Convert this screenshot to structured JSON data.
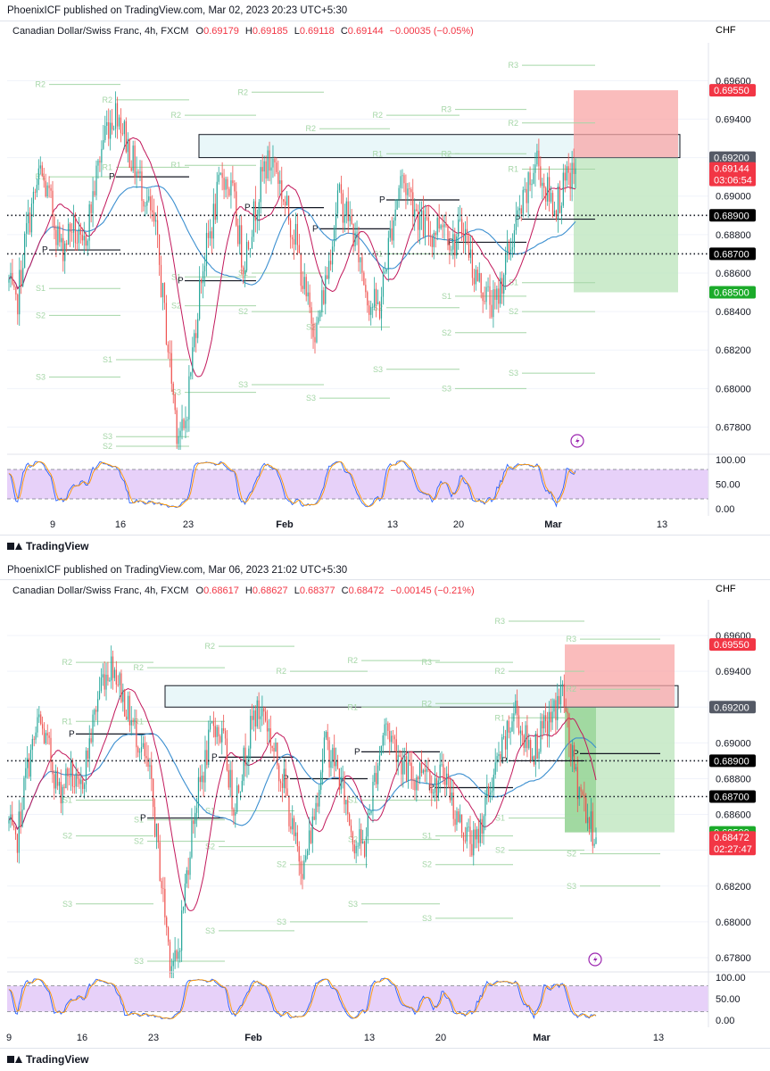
{
  "charts": [
    {
      "published": "PhoenixICF published on TradingView.com, Mar 02, 2023 20:23 UTC+5:30",
      "legend": {
        "symbol": "Canadian Dollar/Swiss Franc, 4h, FXCM",
        "o_label": "O",
        "o": "0.69179",
        "h_label": "H",
        "h": "0.69185",
        "l_label": "L",
        "l": "0.69118",
        "c_label": "C",
        "c": "0.69144",
        "change": "−0.00035 (−0.05%)"
      },
      "currency": "CHF",
      "countdown": "03:06:54",
      "last_price": "0.69144",
      "x_ticks": [
        "9",
        "16",
        "23",
        "Feb",
        "13",
        "20",
        "Mar",
        "13"
      ],
      "osc_ticks": [
        "100.00",
        "50.00",
        "0.00"
      ],
      "badges": [
        {
          "label": "0.69550",
          "bg": "#f23645",
          "fg": "#ffffff"
        },
        {
          "label": "0.69200",
          "bg": "#555a66",
          "fg": "#ffffff"
        },
        {
          "label": "0.68900",
          "bg": "#000000",
          "fg": "#ffffff"
        },
        {
          "label": "0.68700",
          "bg": "#000000",
          "fg": "#ffffff"
        },
        {
          "label": "0.68500",
          "bg": "#1bab2a",
          "fg": "#ffffff"
        }
      ]
    },
    {
      "published": "PhoenixICF published on TradingView.com, Mar 06, 2023 21:02 UTC+5:30",
      "legend": {
        "symbol": "Canadian Dollar/Swiss Franc, 4h, FXCM",
        "o_label": "O",
        "o": "0.68617",
        "h_label": "H",
        "h": "0.68627",
        "l_label": "L",
        "l": "0.68377",
        "c_label": "C",
        "c": "0.68472",
        "change": "−0.00145 (−0.21%)"
      },
      "currency": "CHF",
      "countdown": "02:27:47",
      "last_price": "0.68472",
      "x_ticks": [
        "9",
        "16",
        "23",
        "Feb",
        "13",
        "20",
        "Mar",
        "13"
      ],
      "osc_ticks": [
        "100.00",
        "50.00",
        "0.00"
      ],
      "badges": [
        {
          "label": "0.69550",
          "bg": "#f23645",
          "fg": "#ffffff"
        },
        {
          "label": "0.69200",
          "bg": "#555a66",
          "fg": "#ffffff"
        },
        {
          "label": "0.68900",
          "bg": "#000000",
          "fg": "#ffffff"
        },
        {
          "label": "0.68700",
          "bg": "#000000",
          "fg": "#ffffff"
        },
        {
          "label": "0.68500",
          "bg": "#1bab2a",
          "fg": "#ffffff"
        }
      ]
    }
  ],
  "footer_brand": "TradingView",
  "chart_data": [
    {
      "type": "candlestick",
      "title": "Canadian Dollar/Swiss Franc, 4h, FXCM",
      "y_ticks": [
        0.696,
        0.694,
        0.692,
        0.69,
        0.688,
        0.686,
        0.684,
        0.682,
        0.68,
        0.678
      ],
      "ylim": [
        0.677,
        0.6975
      ],
      "x_ticks": [
        "9",
        "16",
        "23",
        "Feb",
        "13",
        "20",
        "Mar",
        "13"
      ],
      "last_close": 0.69144,
      "levels": {
        "stop": 0.6955,
        "entry": 0.692,
        "mid1": 0.689,
        "mid2": 0.687,
        "target": 0.685
      },
      "resistance_zone": [
        0.692,
        0.6932
      ],
      "oscillator": {
        "range": [
          0,
          100
        ],
        "band": [
          20,
          80
        ]
      },
      "colors": {
        "up": "#26a69a",
        "down": "#ef5350",
        "ma_blue": "#3b8fd0",
        "ma_red": "#c2185b",
        "pivot": "#a5d6a7",
        "osc_band": "#e1c6f7",
        "risk": "#f8a5a5",
        "reward": "#bfe6bf"
      }
    },
    {
      "type": "candlestick",
      "title": "Canadian Dollar/Swiss Franc, 4h, FXCM",
      "y_ticks": [
        0.696,
        0.694,
        0.692,
        0.69,
        0.688,
        0.686,
        0.684,
        0.682,
        0.68,
        0.678
      ],
      "ylim": [
        0.677,
        0.6975
      ],
      "x_ticks": [
        "9",
        "16",
        "23",
        "Feb",
        "13",
        "20",
        "Mar",
        "13"
      ],
      "last_close": 0.68472,
      "levels": {
        "stop": 0.6955,
        "entry": 0.692,
        "mid1": 0.689,
        "mid2": 0.687,
        "target": 0.685
      },
      "resistance_zone": [
        0.692,
        0.6932
      ],
      "oscillator": {
        "range": [
          0,
          100
        ],
        "band": [
          20,
          80
        ]
      },
      "colors": {
        "up": "#26a69a",
        "down": "#ef5350",
        "ma_blue": "#3b8fd0",
        "ma_red": "#c2185b",
        "pivot": "#a5d6a7",
        "osc_band": "#e1c6f7",
        "risk": "#f8a5a5",
        "reward": "#bfe6bf"
      }
    }
  ]
}
